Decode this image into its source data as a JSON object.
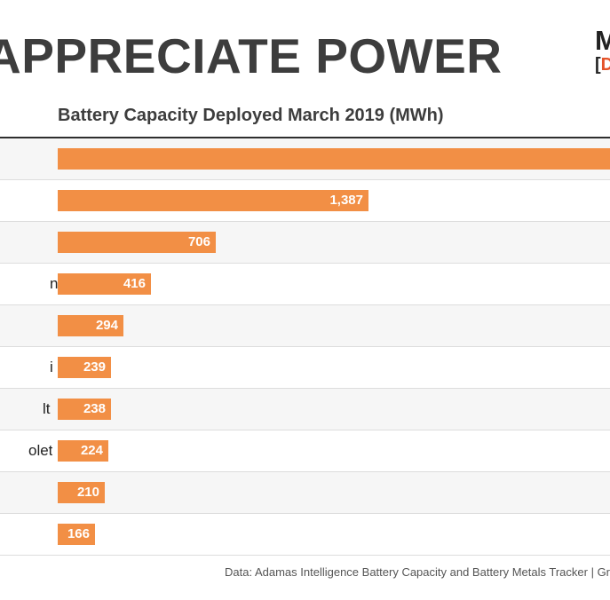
{
  "headline": "APPRECIATE POWER",
  "logo": {
    "top_text": "M",
    "bottom_bracket": "[",
    "bottom_letter": "D"
  },
  "source_note": "Data: Adamas Intelligence Battery Capacity and Battery Metals Tracker | Graph: MIN",
  "colors": {
    "bar": "#f28f45",
    "headline": "#3d3d3d",
    "logo_accent": "#e4532a"
  },
  "chart_data": {
    "type": "bar",
    "orientation": "horizontal",
    "title": "Battery Capacity Deployed March 2019 (MWh)",
    "xlabel": "",
    "ylabel": "",
    "grid": false,
    "categories_visible_fragments": [
      "",
      "",
      "",
      "n",
      "",
      "i",
      "lt",
      "olet",
      "",
      ""
    ],
    "values": [
      null,
      1387,
      706,
      416,
      294,
      239,
      238,
      224,
      210,
      166
    ],
    "value_labels": [
      "",
      "1,387",
      "706",
      "416",
      "294",
      "239",
      "238",
      "224",
      "210",
      "166"
    ]
  }
}
